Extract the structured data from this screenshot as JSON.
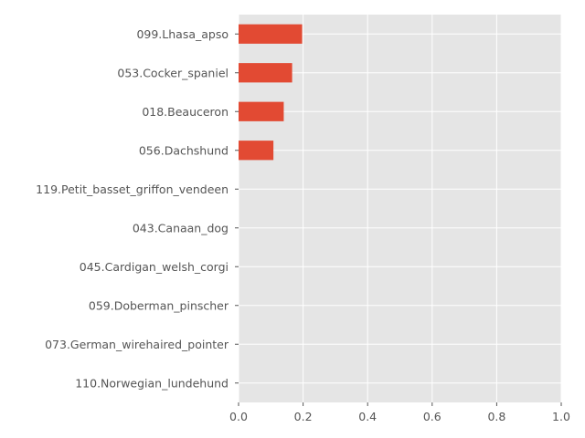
{
  "chart_data": {
    "type": "bar",
    "orientation": "horizontal",
    "title": "",
    "xlabel": "",
    "ylabel": "",
    "categories": [
      "099.Lhasa_apso",
      "053.Cocker_spaniel",
      "018.Beauceron",
      "056.Dachshund",
      "119.Petit_basset_griffon_vendeen",
      "043.Canaan_dog",
      "045.Cardigan_welsh_corgi",
      "059.Doberman_pinscher",
      "073.German_wirehaired_pointer",
      "110.Norwegian_lundehund"
    ],
    "values": [
      0.197,
      0.166,
      0.14,
      0.108,
      0.0,
      0.0,
      0.0,
      0.0,
      0.0,
      0.0
    ],
    "xlim": [
      0,
      1
    ],
    "xticks": [
      "0.0",
      "0.2",
      "0.4",
      "0.6",
      "0.8",
      "1.0"
    ],
    "grid": true,
    "legend": "none",
    "colors": {
      "bar": "#E24A33",
      "plot_background": "#E5E5E5",
      "grid": "#FFFFFF",
      "text": "#555555"
    }
  }
}
